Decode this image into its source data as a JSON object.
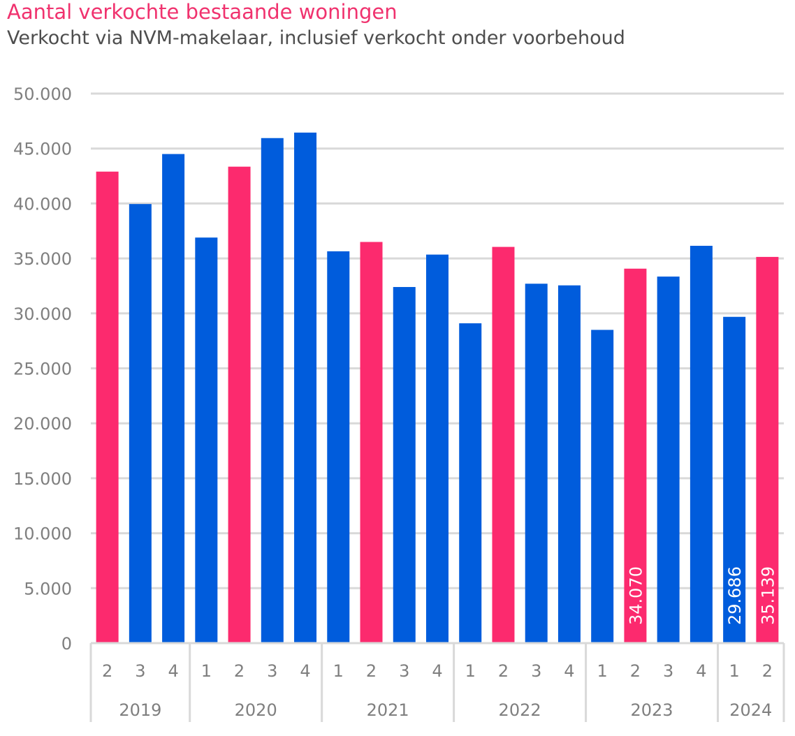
{
  "title": "Aantal verkochte bestaande woningen",
  "subtitle": "Verkocht via NVM-makelaar, inclusief verkocht onder voorbehoud",
  "colors": {
    "highlight": "#fc2a6e",
    "normal": "#005cdc",
    "grid": "#d9d9d9",
    "axis_text": "#7f7f7f",
    "label_text": "#ffffff"
  },
  "chart_data": {
    "type": "bar",
    "title": "Aantal verkochte bestaande woningen",
    "subtitle": "Verkocht via NVM-makelaar, inclusief verkocht onder voorbehoud",
    "xlabel": "",
    "ylabel": "",
    "ylim": [
      0,
      50000
    ],
    "yticks": [
      0,
      5000,
      10000,
      15000,
      20000,
      25000,
      30000,
      35000,
      40000,
      45000,
      50000
    ],
    "ytick_labels": [
      "0",
      "5.000",
      "10.000",
      "15.000",
      "20.000",
      "25.000",
      "30.000",
      "35.000",
      "40.000",
      "45.000",
      "50.000"
    ],
    "grid": true,
    "categories": [
      {
        "year": "2019",
        "quarter": "2"
      },
      {
        "year": "2019",
        "quarter": "3"
      },
      {
        "year": "2019",
        "quarter": "4"
      },
      {
        "year": "2020",
        "quarter": "1"
      },
      {
        "year": "2020",
        "quarter": "2"
      },
      {
        "year": "2020",
        "quarter": "3"
      },
      {
        "year": "2020",
        "quarter": "4"
      },
      {
        "year": "2021",
        "quarter": "1"
      },
      {
        "year": "2021",
        "quarter": "2"
      },
      {
        "year": "2021",
        "quarter": "3"
      },
      {
        "year": "2021",
        "quarter": "4"
      },
      {
        "year": "2022",
        "quarter": "1"
      },
      {
        "year": "2022",
        "quarter": "2"
      },
      {
        "year": "2022",
        "quarter": "3"
      },
      {
        "year": "2022",
        "quarter": "4"
      },
      {
        "year": "2023",
        "quarter": "1"
      },
      {
        "year": "2023",
        "quarter": "2"
      },
      {
        "year": "2023",
        "quarter": "3"
      },
      {
        "year": "2023",
        "quarter": "4"
      },
      {
        "year": "2024",
        "quarter": "1"
      },
      {
        "year": "2024",
        "quarter": "2"
      }
    ],
    "values": [
      42900,
      39950,
      44500,
      36900,
      43350,
      45950,
      46450,
      35650,
      36500,
      32400,
      35350,
      29100,
      36050,
      32700,
      32550,
      28500,
      34070,
      33350,
      36150,
      29686,
      35139
    ],
    "highlight": [
      true,
      false,
      false,
      false,
      true,
      false,
      false,
      false,
      true,
      false,
      false,
      false,
      true,
      false,
      false,
      false,
      true,
      false,
      false,
      false,
      true
    ],
    "data_labels": [
      "",
      "",
      "",
      "",
      "",
      "",
      "",
      "",
      "",
      "",
      "",
      "",
      "",
      "",
      "",
      "",
      "34.070",
      "",
      "",
      "29.686",
      "35.139"
    ]
  }
}
